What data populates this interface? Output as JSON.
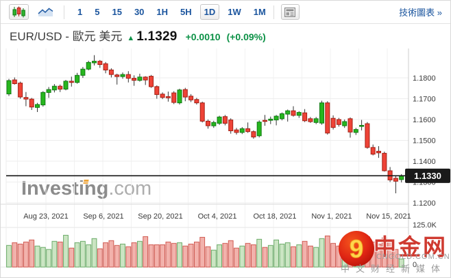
{
  "toolbar": {
    "chart_types": [
      {
        "name": "candlestick-chart",
        "selected": true
      },
      {
        "name": "area-chart",
        "selected": false
      }
    ],
    "timeframes": [
      {
        "label": "1",
        "selected": false
      },
      {
        "label": "5",
        "selected": false
      },
      {
        "label": "15",
        "selected": false
      },
      {
        "label": "30",
        "selected": false
      },
      {
        "label": "1H",
        "selected": false
      },
      {
        "label": "5H",
        "selected": false
      },
      {
        "label": "1D",
        "selected": true
      },
      {
        "label": "1W",
        "selected": false
      },
      {
        "label": "1M",
        "selected": false
      }
    ],
    "news_button": "news-panel",
    "link": "技術圖表 »"
  },
  "header": {
    "symbol": "EUR/USD - 歐元 美元",
    "arrow": "▲",
    "price": "1.1329",
    "change": "+0.0010",
    "change_pct": "(+0.09%)",
    "up_color": "#0c9146"
  },
  "watermarks": {
    "investing": {
      "name": "Investing",
      "suffix": ".com"
    },
    "cngold": {
      "glyph": "9",
      "name": "中金网",
      "domain": "CNGOLD.COM.CN",
      "tagline": "中文财经新媒体"
    }
  },
  "chart_data": {
    "type": "candlestick+volume",
    "title": "EUR/USD daily candlestick chart with volume",
    "current_price": 1.133,
    "current_price_label": "1.1330",
    "ylim": [
      1.119,
      1.1935
    ],
    "grid": true,
    "y_axis": {
      "ticks": [
        "1.1800",
        "1.1700",
        "1.1600",
        "1.1500",
        "1.1400",
        "1.1300",
        "1.1200"
      ],
      "volume_ticks": [
        {
          "label": "125.0K",
          "value": 125.0
        },
        {
          "label": "0",
          "value": 0
        }
      ],
      "volume_max": 125.0
    },
    "x_axis": {
      "labels": [
        "Aug 23, 2021",
        "Sep 6, 2021",
        "Sep 20, 2021",
        "Oct 4, 2021",
        "Oct 18, 2021",
        "Nov 1, 2021",
        "Nov 15, 2021"
      ],
      "label_x": [
        66,
        150,
        233,
        316,
        400,
        483,
        566
      ]
    },
    "candles_ohlc": [
      [
        1.1723,
        1.1795,
        1.1713,
        1.1787
      ],
      [
        1.179,
        1.1802,
        1.1768,
        1.1772
      ],
      [
        1.1775,
        1.1782,
        1.17,
        1.1708
      ],
      [
        1.1706,
        1.1732,
        1.1664,
        1.1698
      ],
      [
        1.1698,
        1.1704,
        1.1646,
        1.166
      ],
      [
        1.1658,
        1.168,
        1.1636,
        1.1672
      ],
      [
        1.167,
        1.1736,
        1.1662,
        1.173
      ],
      [
        1.173,
        1.1756,
        1.1704,
        1.1744
      ],
      [
        1.1742,
        1.177,
        1.173,
        1.176
      ],
      [
        1.176,
        1.1768,
        1.1732,
        1.1746
      ],
      [
        1.1746,
        1.179,
        1.174,
        1.1784
      ],
      [
        1.1784,
        1.1806,
        1.1758,
        1.1778
      ],
      [
        1.1778,
        1.1824,
        1.1772,
        1.1812
      ],
      [
        1.1812,
        1.1852,
        1.18,
        1.1842
      ],
      [
        1.1842,
        1.1882,
        1.1836,
        1.1874
      ],
      [
        1.1872,
        1.1909,
        1.186,
        1.188
      ],
      [
        1.188,
        1.1886,
        1.1848,
        1.1864
      ],
      [
        1.1868,
        1.1876,
        1.1822,
        1.1838
      ],
      [
        1.1838,
        1.1846,
        1.1802,
        1.1816
      ],
      [
        1.1814,
        1.182,
        1.1768,
        1.1806
      ],
      [
        1.1806,
        1.1826,
        1.1796,
        1.1816
      ],
      [
        1.1816,
        1.1832,
        1.1778,
        1.1798
      ],
      [
        1.1798,
        1.1812,
        1.1762,
        1.1788
      ],
      [
        1.1788,
        1.182,
        1.1782,
        1.1804
      ],
      [
        1.1804,
        1.1808,
        1.1766,
        1.179
      ],
      [
        1.1808,
        1.1814,
        1.1752,
        1.1758
      ],
      [
        1.1758,
        1.1764,
        1.17,
        1.172
      ],
      [
        1.1722,
        1.173,
        1.1698,
        1.1706
      ],
      [
        1.171,
        1.1734,
        1.1686,
        1.1704
      ],
      [
        1.1728,
        1.1736,
        1.1674,
        1.1682
      ],
      [
        1.168,
        1.1748,
        1.1672,
        1.1742
      ],
      [
        1.1744,
        1.1752,
        1.1688,
        1.1708
      ],
      [
        1.1712,
        1.1722,
        1.1684,
        1.1694
      ],
      [
        1.1696,
        1.1704,
        1.1672,
        1.168
      ],
      [
        1.168,
        1.1686,
        1.1586,
        1.1592
      ],
      [
        1.1592,
        1.16,
        1.1556,
        1.157
      ],
      [
        1.157,
        1.1594,
        1.156,
        1.1586
      ],
      [
        1.1582,
        1.1618,
        1.1574,
        1.1612
      ],
      [
        1.1614,
        1.1622,
        1.1572,
        1.1582
      ],
      [
        1.1598,
        1.1606,
        1.1532,
        1.1546
      ],
      [
        1.155,
        1.156,
        1.1528,
        1.1538
      ],
      [
        1.1538,
        1.1564,
        1.153,
        1.1556
      ],
      [
        1.1556,
        1.1586,
        1.1536,
        1.1542
      ],
      [
        1.1542,
        1.1548,
        1.1508,
        1.1516
      ],
      [
        1.1522,
        1.1596,
        1.1514,
        1.1588
      ],
      [
        1.1596,
        1.1622,
        1.157,
        1.1592
      ],
      [
        1.1596,
        1.1614,
        1.1578,
        1.1602
      ],
      [
        1.1598,
        1.1622,
        1.1572,
        1.1616
      ],
      [
        1.1604,
        1.1634,
        1.1596,
        1.1628
      ],
      [
        1.1626,
        1.1648,
        1.159,
        1.1642
      ],
      [
        1.1642,
        1.1664,
        1.1614,
        1.162
      ],
      [
        1.162,
        1.164,
        1.1608,
        1.1634
      ],
      [
        1.1632,
        1.165,
        1.1588,
        1.1594
      ],
      [
        1.1604,
        1.1612,
        1.1584,
        1.159
      ],
      [
        1.1586,
        1.1612,
        1.1578,
        1.1604
      ],
      [
        1.1583,
        1.169,
        1.1575,
        1.168
      ],
      [
        1.168,
        1.1688,
        1.1528,
        1.1535
      ],
      [
        1.1606,
        1.162,
        1.1552,
        1.1562
      ],
      [
        1.16,
        1.1608,
        1.1566,
        1.1576
      ],
      [
        1.157,
        1.16,
        1.156,
        1.159
      ],
      [
        1.1604,
        1.161,
        1.1513,
        1.154
      ],
      [
        1.1538,
        1.156,
        1.1526,
        1.1552
      ],
      [
        1.1568,
        1.1598,
        1.1548,
        1.1572
      ],
      [
        1.158,
        1.1588,
        1.146,
        1.1466
      ],
      [
        1.1466,
        1.148,
        1.1428,
        1.1434
      ],
      [
        1.1448,
        1.1472,
        1.1416,
        1.144
      ],
      [
        1.1438,
        1.1446,
        1.135,
        1.1354
      ],
      [
        1.1354,
        1.1372,
        1.13,
        1.131
      ],
      [
        1.1318,
        1.1332,
        1.1246,
        1.1304
      ],
      [
        1.1312,
        1.1338,
        1.1298,
        1.1329
      ]
    ],
    "volumes_k": [
      64,
      72,
      68,
      74,
      80,
      62,
      58,
      52,
      76,
      74,
      94,
      56,
      72,
      76,
      66,
      84,
      54,
      72,
      78,
      64,
      68,
      60,
      72,
      76,
      90,
      66,
      66,
      66,
      74,
      70,
      72,
      62,
      68,
      74,
      88,
      60,
      50,
      66,
      70,
      78,
      56,
      62,
      70,
      66,
      82,
      58,
      64,
      80,
      68,
      72,
      60,
      66,
      76,
      62,
      58,
      84,
      92,
      70,
      62,
      66,
      78,
      56,
      60,
      90,
      74,
      68,
      86,
      80,
      52,
      24
    ],
    "colors": {
      "up": "#27b61e",
      "up_border": "#0f7a12",
      "down": "#ee4337",
      "down_border": "#a32014",
      "vol_up": "#cbe5c3",
      "vol_up_border": "#6aab68",
      "vol_down": "#f2b2ac",
      "vol_down_border": "#d05a52",
      "grid": "#ededed",
      "axis_text": "#3a3a3a",
      "price_line": "#141414",
      "badge_bg": "#1a1a1a",
      "badge_text": "#ffffff"
    },
    "legend_position": "none"
  }
}
